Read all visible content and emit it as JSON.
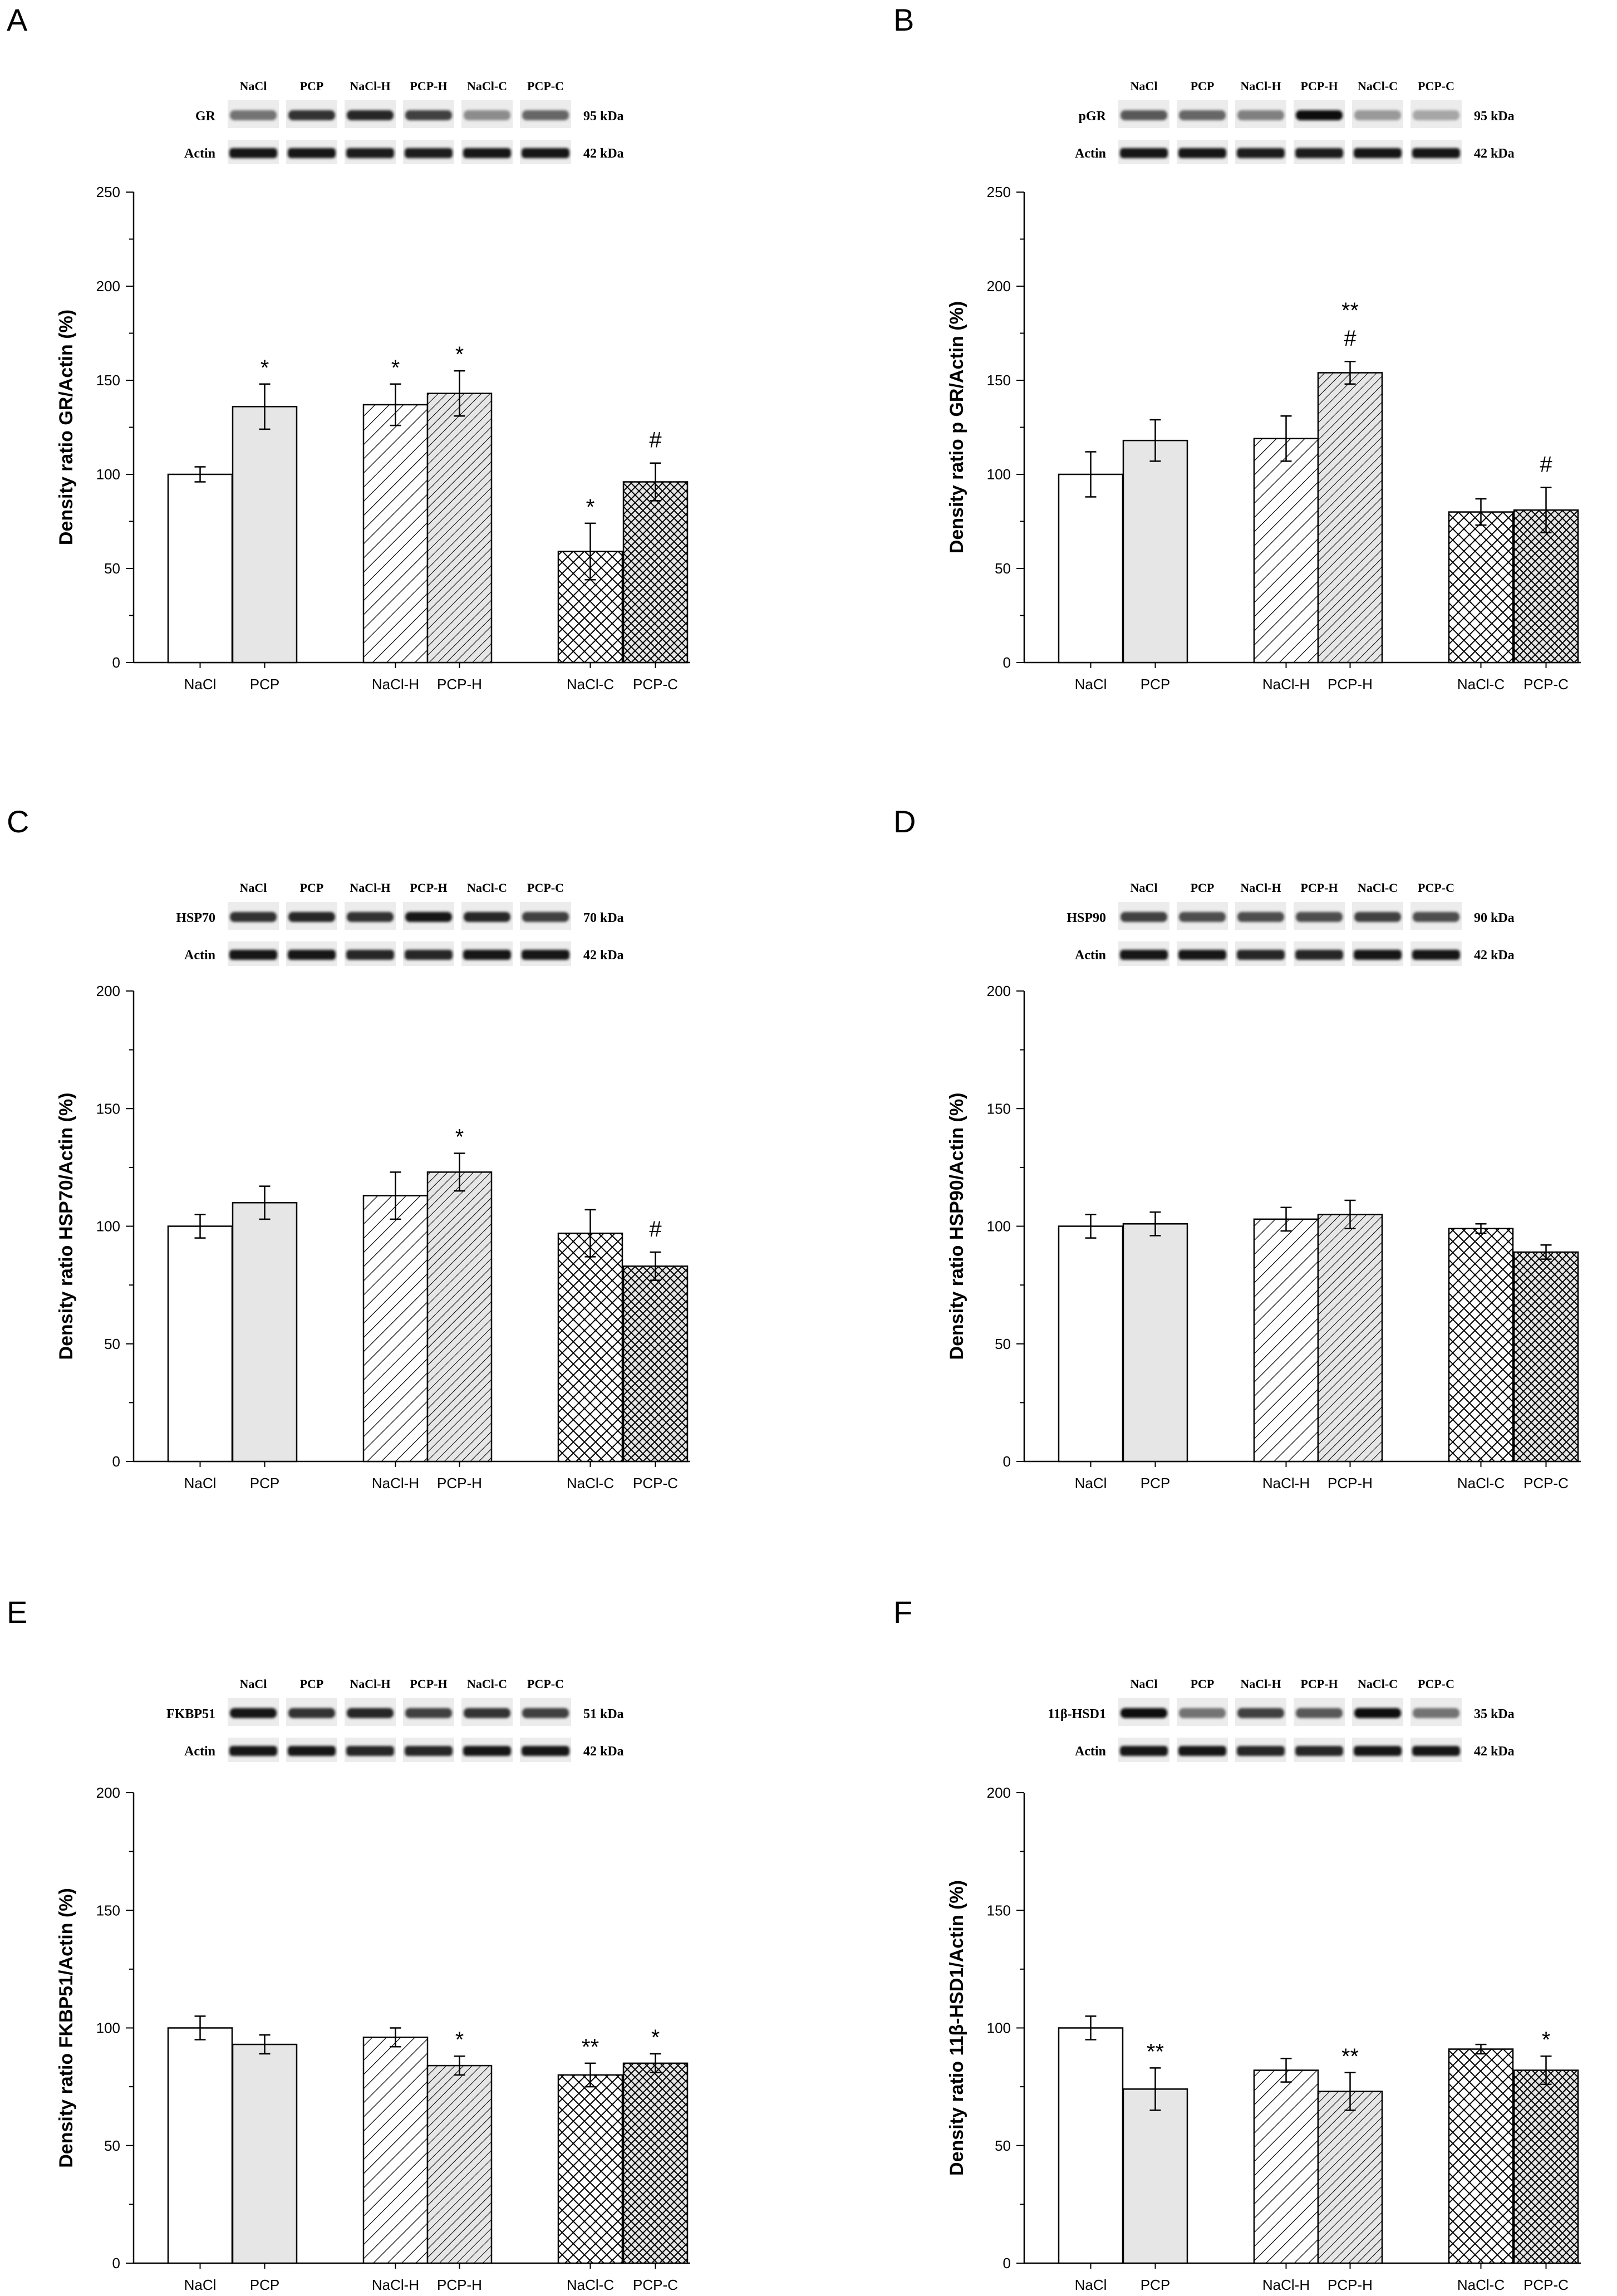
{
  "chart_data": [
    {
      "type": "bar",
      "panel": "A",
      "protein": "GR",
      "protein_kda": "95 kDa",
      "loading": "Actin",
      "loading_kda": "42 kDa",
      "lanes": [
        "NaCl",
        "PCP",
        "NaCl-H",
        "PCP-H",
        "NaCl-C",
        "PCP-C"
      ],
      "categories": [
        "NaCl",
        "PCP",
        "NaCl-H",
        "PCP-H",
        "NaCl-C",
        "PCP-C"
      ],
      "values": [
        100,
        136,
        137,
        143,
        59,
        96
      ],
      "errors": [
        4,
        12,
        11,
        12,
        15,
        10
      ],
      "significance": [
        "",
        "*",
        "*",
        "*",
        "*",
        "#"
      ],
      "ylabel": "Density ratio GR/Actin (%)",
      "ylim": [
        0,
        250
      ],
      "yticks": [
        0,
        50,
        100,
        150,
        200,
        250
      ]
    },
    {
      "type": "bar",
      "panel": "B",
      "protein": "pGR",
      "protein_kda": "95 kDa",
      "loading": "Actin",
      "loading_kda": "42 kDa",
      "lanes": [
        "NaCl",
        "PCP",
        "NaCl-H",
        "PCP-H",
        "NaCl-C",
        "PCP-C"
      ],
      "categories": [
        "NaCl",
        "PCP",
        "NaCl-H",
        "PCP-H",
        "NaCl-C",
        "PCP-C"
      ],
      "values": [
        100,
        118,
        119,
        154,
        80,
        81
      ],
      "errors": [
        12,
        11,
        12,
        6,
        7,
        12
      ],
      "significance": [
        "",
        "",
        "",
        "**\n#",
        "",
        "#"
      ],
      "ylabel": "Density ratio p GR/Actin (%)",
      "ylim": [
        0,
        250
      ],
      "yticks": [
        0,
        50,
        100,
        150,
        200,
        250
      ]
    },
    {
      "type": "bar",
      "panel": "C",
      "protein": "HSP70",
      "protein_kda": "70 kDa",
      "loading": "Actin",
      "loading_kda": "42 kDa",
      "lanes": [
        "NaCl",
        "PCP",
        "NaCl-H",
        "PCP-H",
        "NaCl-C",
        "PCP-C"
      ],
      "categories": [
        "NaCl",
        "PCP",
        "NaCl-H",
        "PCP-H",
        "NaCl-C",
        "PCP-C"
      ],
      "values": [
        100,
        110,
        113,
        123,
        97,
        83
      ],
      "errors": [
        5,
        7,
        10,
        8,
        10,
        6
      ],
      "significance": [
        "",
        "",
        "",
        "*",
        "",
        "#"
      ],
      "ylabel": "Density ratio HSP70/Actin (%)",
      "ylim": [
        0,
        200
      ],
      "yticks": [
        0,
        50,
        100,
        150,
        200
      ]
    },
    {
      "type": "bar",
      "panel": "D",
      "protein": "HSP90",
      "protein_kda": "90 kDa",
      "loading": "Actin",
      "loading_kda": "42 kDa",
      "lanes": [
        "NaCl",
        "PCP",
        "NaCl-H",
        "PCP-H",
        "NaCl-C",
        "PCP-C"
      ],
      "categories": [
        "NaCl",
        "PCP",
        "NaCl-H",
        "PCP-H",
        "NaCl-C",
        "PCP-C"
      ],
      "values": [
        100,
        101,
        103,
        105,
        99,
        89
      ],
      "errors": [
        5,
        5,
        5,
        6,
        2,
        3
      ],
      "significance": [
        "",
        "",
        "",
        "",
        "",
        ""
      ],
      "ylabel": "Density ratio HSP90/Actin (%)",
      "ylim": [
        0,
        200
      ],
      "yticks": [
        0,
        50,
        100,
        150,
        200
      ]
    },
    {
      "type": "bar",
      "panel": "E",
      "protein": "FKBP51",
      "protein_kda": "51 kDa",
      "loading": "Actin",
      "loading_kda": "42 kDa",
      "lanes": [
        "NaCl",
        "PCP",
        "NaCl-H",
        "PCP-H",
        "NaCl-C",
        "PCP-C"
      ],
      "categories": [
        "NaCl",
        "PCP",
        "NaCl-H",
        "PCP-H",
        "NaCl-C",
        "PCP-C"
      ],
      "values": [
        100,
        93,
        96,
        84,
        80,
        85
      ],
      "errors": [
        5,
        4,
        4,
        4,
        5,
        4
      ],
      "significance": [
        "",
        "",
        "",
        "*",
        "**",
        "*"
      ],
      "ylabel": "Density ratio FKBP51/Actin (%)",
      "ylim": [
        0,
        200
      ],
      "yticks": [
        0,
        50,
        100,
        150,
        200
      ]
    },
    {
      "type": "bar",
      "panel": "F",
      "protein": "11β-HSD1",
      "protein_kda": "35 kDa",
      "loading": "Actin",
      "loading_kda": "42 kDa",
      "lanes": [
        "NaCl",
        "PCP",
        "NaCl-H",
        "PCP-H",
        "NaCl-C",
        "PCP-C"
      ],
      "categories": [
        "NaCl",
        "PCP",
        "NaCl-H",
        "PCP-H",
        "NaCl-C",
        "PCP-C"
      ],
      "values": [
        100,
        74,
        82,
        73,
        91,
        82
      ],
      "errors": [
        5,
        9,
        5,
        8,
        2,
        6
      ],
      "significance": [
        "",
        "**",
        "",
        "**",
        "",
        "*"
      ],
      "ylabel": "Density ratio 11β-HSD1/Actin (%)",
      "ylim": [
        0,
        200
      ],
      "yticks": [
        0,
        50,
        100,
        150,
        200
      ]
    }
  ],
  "colors": {
    "axis": "#000000",
    "bar_fill_nacl": "#ffffff",
    "bar_fill_pcp": "#e6e6e6",
    "pattern_line": "#000000",
    "band_dark": "#141414"
  }
}
